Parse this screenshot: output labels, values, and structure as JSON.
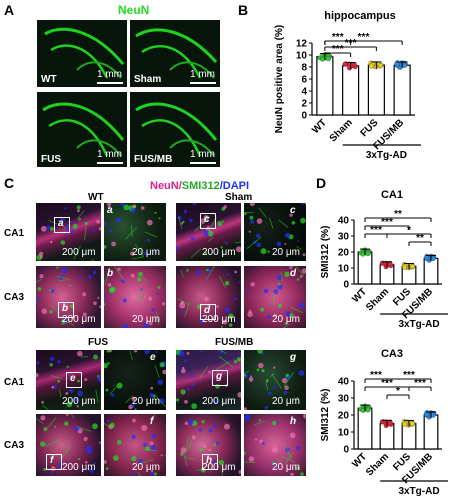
{
  "panels": {
    "A": "A",
    "B": "B",
    "C": "C",
    "D": "D"
  },
  "panel_a": {
    "stain_title": "NeuN",
    "images": [
      {
        "group": "WT",
        "scale": "1 mm"
      },
      {
        "group": "Sham",
        "scale": "1 mm"
      },
      {
        "group": "FUS",
        "scale": "1 mm"
      },
      {
        "group": "FUS/MB",
        "scale": "1 mm"
      }
    ]
  },
  "panel_c": {
    "title_neun": "NeuN/",
    "title_smi": "SMI312",
    "title_dapi": "/DAPI",
    "regions": [
      "CA1",
      "CA3",
      "CA1",
      "CA3"
    ],
    "groups": [
      "WT",
      "Sham",
      "FUS",
      "FUS/MB"
    ],
    "scale_low": "200 μm",
    "scale_high": "20 μm",
    "sublabels": [
      "a",
      "b",
      "c",
      "d",
      "e",
      "f",
      "g",
      "h"
    ]
  },
  "colors": {
    "neun_green": "#22dd22",
    "smi_green": "#22dd22",
    "neun_magenta": "#e0208a",
    "dapi_blue": "#2030ff",
    "dot_wt": "#32c832",
    "dot_sham": "#e8203c",
    "dot_fus": "#e6d21e",
    "dot_fusmb": "#2c8be6"
  },
  "chart_data": [
    {
      "type": "bar",
      "title": "hippocampus",
      "ylabel": "NeuN positive area (%)",
      "categories": [
        "WT",
        "Sham",
        "FUS",
        "FUS/MB"
      ],
      "values": [
        9.7,
        8.2,
        8.3,
        8.3
      ],
      "ylim": [
        0,
        12
      ],
      "yticks": [
        "0",
        "2",
        "4",
        "6",
        "8",
        "10",
        "12"
      ],
      "group_label": "3xTg-AD",
      "significance": [
        "***",
        "***",
        "***",
        "***"
      ]
    },
    {
      "type": "bar",
      "title": "CA1",
      "ylabel": "SMI312 (%)",
      "categories": [
        "WT",
        "Sham",
        "FUS",
        "FUS/MB"
      ],
      "values": [
        20,
        12,
        11,
        16
      ],
      "ylim": [
        0,
        40
      ],
      "yticks": [
        "0",
        "10",
        "20",
        "30",
        "40"
      ],
      "group_label": "3xTg-AD",
      "significance": [
        "**",
        "***",
        "***",
        "*",
        "**"
      ]
    },
    {
      "type": "bar",
      "title": "CA3",
      "ylabel": "SMI312 (%)",
      "categories": [
        "WT",
        "Sham",
        "FUS",
        "FUS/MB"
      ],
      "values": [
        24,
        15,
        15,
        20
      ],
      "ylim": [
        0,
        40
      ],
      "yticks": [
        "0",
        "10",
        "20",
        "30",
        "40"
      ],
      "group_label": "3xTg-AD",
      "significance": [
        "***",
        "***",
        "***",
        "*",
        "***"
      ]
    }
  ]
}
